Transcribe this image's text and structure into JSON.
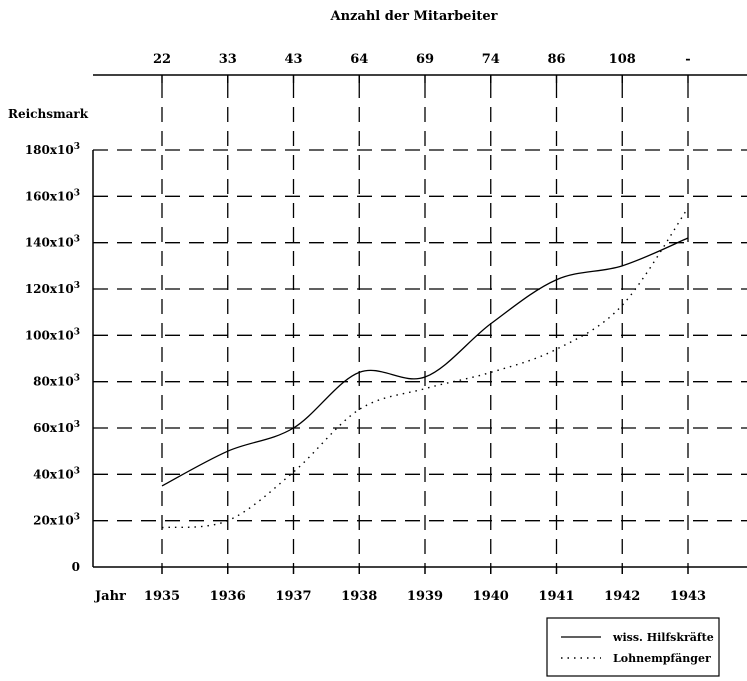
{
  "chart_data": {
    "type": "line",
    "title": "Anzahl der Mitarbeiter",
    "ylabel": "Reichsmark",
    "xlabel": "Jahr",
    "x": [
      "1935",
      "1936",
      "1937",
      "1938",
      "1939",
      "1940",
      "1941",
      "1942",
      "1943"
    ],
    "top_axis_labels": [
      "22",
      "33",
      "43",
      "64",
      "69",
      "74",
      "86",
      "108",
      "-"
    ],
    "y_ticks": [
      {
        "value": 0,
        "base": "0",
        "exp": ""
      },
      {
        "value": 20000,
        "base": "20x10",
        "exp": "3"
      },
      {
        "value": 40000,
        "base": "40x10",
        "exp": "3"
      },
      {
        "value": 60000,
        "base": "60x10",
        "exp": "3"
      },
      {
        "value": 80000,
        "base": "80x10",
        "exp": "3"
      },
      {
        "value": 100000,
        "base": "100x10",
        "exp": "3"
      },
      {
        "value": 120000,
        "base": "120x10",
        "exp": "3"
      },
      {
        "value": 140000,
        "base": "140x10",
        "exp": "3"
      },
      {
        "value": 160000,
        "base": "160x10",
        "exp": "3"
      },
      {
        "value": 180000,
        "base": "180x10",
        "exp": "3"
      }
    ],
    "ylim": [
      0,
      180000
    ],
    "grid": true,
    "legend_position": "bottom-right",
    "series": [
      {
        "name": "wiss. Hilfskräfte",
        "style": "solid",
        "values": [
          35000,
          50000,
          60000,
          84000,
          82000,
          105000,
          124000,
          130000,
          142000
        ]
      },
      {
        "name": "Lohnempfänger",
        "style": "dotted",
        "values": [
          17000,
          20000,
          41000,
          68000,
          77000,
          84000,
          94000,
          113000,
          155000
        ]
      }
    ],
    "line_color": "#000000"
  }
}
